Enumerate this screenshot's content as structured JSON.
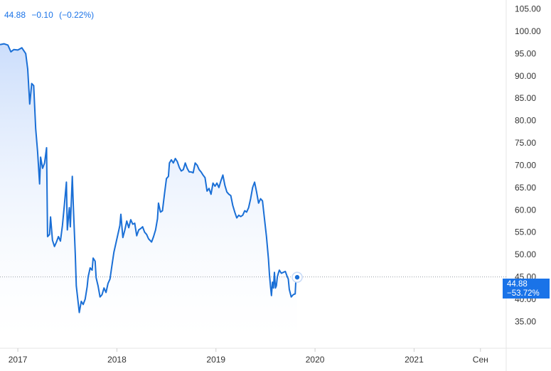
{
  "header": {
    "price": "44.88",
    "change": "−0.10",
    "change_pct": "(−0.22%)"
  },
  "badge": {
    "price": "44.88",
    "change_pct": "−53.72%"
  },
  "colors": {
    "line": "#1a6fd6",
    "accent": "#1a73e8",
    "fill_top": "#c9dcfb",
    "fill_bottom": "#ffffff",
    "axis_text": "#333333",
    "grid": "#e6e6e6"
  },
  "chart_data": {
    "type": "area",
    "title": "",
    "xlabel": "",
    "ylabel": "",
    "ylim": [
      29,
      107
    ],
    "y_ticks": [
      "105.00",
      "100.00",
      "95.00",
      "90.00",
      "85.00",
      "80.00",
      "75.00",
      "70.00",
      "65.00",
      "60.00",
      "55.00",
      "50.00",
      "45.00",
      "40.00",
      "35.00"
    ],
    "x_ticks": [
      {
        "label": "2017",
        "x": 2017.0
      },
      {
        "label": "2018",
        "x": 2018.0
      },
      {
        "label": "2019",
        "x": 2019.0
      },
      {
        "label": "2020",
        "x": 2020.0
      },
      {
        "label": "2021",
        "x": 2021.0
      },
      {
        "label": "Сен",
        "x": 2021.67
      }
    ],
    "xlim": [
      2016.82,
      2021.93
    ],
    "reference_line": 44.98,
    "series": [
      {
        "values": [
          [
            2016.82,
            97.0
          ],
          [
            2016.86,
            97.2
          ],
          [
            2016.9,
            96.9
          ],
          [
            2016.93,
            95.4
          ],
          [
            2016.96,
            95.9
          ],
          [
            2017.0,
            95.8
          ],
          [
            2017.04,
            96.3
          ],
          [
            2017.08,
            95.0
          ],
          [
            2017.1,
            91.5
          ],
          [
            2017.12,
            83.7
          ],
          [
            2017.14,
            88.3
          ],
          [
            2017.16,
            87.8
          ],
          [
            2017.18,
            78.2
          ],
          [
            2017.2,
            73.0
          ],
          [
            2017.22,
            65.8
          ],
          [
            2017.23,
            71.8
          ],
          [
            2017.25,
            69.3
          ],
          [
            2017.27,
            70.5
          ],
          [
            2017.29,
            73.9
          ],
          [
            2017.3,
            54.0
          ],
          [
            2017.32,
            54.5
          ],
          [
            2017.33,
            58.4
          ],
          [
            2017.35,
            53.2
          ],
          [
            2017.37,
            51.8
          ],
          [
            2017.39,
            52.8
          ],
          [
            2017.41,
            54.0
          ],
          [
            2017.43,
            53.0
          ],
          [
            2017.45,
            56.5
          ],
          [
            2017.47,
            61.2
          ],
          [
            2017.49,
            66.2
          ],
          [
            2017.5,
            55.5
          ],
          [
            2017.52,
            60.5
          ],
          [
            2017.53,
            56.2
          ],
          [
            2017.55,
            67.5
          ],
          [
            2017.56,
            61.0
          ],
          [
            2017.58,
            50.0
          ],
          [
            2017.59,
            43.0
          ],
          [
            2017.61,
            39.0
          ],
          [
            2017.62,
            37.0
          ],
          [
            2017.64,
            39.5
          ],
          [
            2017.66,
            38.8
          ],
          [
            2017.68,
            40.0
          ],
          [
            2017.7,
            42.8
          ],
          [
            2017.71,
            45.0
          ],
          [
            2017.73,
            47.0
          ],
          [
            2017.75,
            46.5
          ],
          [
            2017.76,
            49.2
          ],
          [
            2017.78,
            48.5
          ],
          [
            2017.79,
            44.8
          ],
          [
            2017.81,
            43.0
          ],
          [
            2017.83,
            40.5
          ],
          [
            2017.85,
            41.0
          ],
          [
            2017.87,
            42.5
          ],
          [
            2017.89,
            41.5
          ],
          [
            2017.91,
            43.5
          ],
          [
            2017.93,
            44.5
          ],
          [
            2017.95,
            47.5
          ],
          [
            2017.97,
            50.5
          ],
          [
            2017.99,
            52.5
          ],
          [
            2018.01,
            54.5
          ],
          [
            2018.03,
            56.5
          ],
          [
            2018.04,
            59.0
          ],
          [
            2018.06,
            53.8
          ],
          [
            2018.08,
            55.5
          ],
          [
            2018.1,
            57.5
          ],
          [
            2018.12,
            56.0
          ],
          [
            2018.14,
            57.8
          ],
          [
            2018.16,
            56.8
          ],
          [
            2018.18,
            57.0
          ],
          [
            2018.2,
            54.2
          ],
          [
            2018.22,
            55.5
          ],
          [
            2018.24,
            55.8
          ],
          [
            2018.26,
            56.2
          ],
          [
            2018.28,
            55.0
          ],
          [
            2018.3,
            54.5
          ],
          [
            2018.32,
            53.5
          ],
          [
            2018.35,
            52.8
          ],
          [
            2018.37,
            54.0
          ],
          [
            2018.39,
            55.5
          ],
          [
            2018.41,
            58.0
          ],
          [
            2018.42,
            61.5
          ],
          [
            2018.44,
            59.5
          ],
          [
            2018.46,
            59.8
          ],
          [
            2018.48,
            63.5
          ],
          [
            2018.5,
            67.0
          ],
          [
            2018.52,
            67.5
          ],
          [
            2018.53,
            70.5
          ],
          [
            2018.55,
            71.2
          ],
          [
            2018.57,
            70.5
          ],
          [
            2018.59,
            71.5
          ],
          [
            2018.61,
            70.8
          ],
          [
            2018.63,
            69.5
          ],
          [
            2018.65,
            68.7
          ],
          [
            2018.67,
            69.0
          ],
          [
            2018.69,
            70.5
          ],
          [
            2018.71,
            69.3
          ],
          [
            2018.73,
            68.5
          ],
          [
            2018.75,
            68.5
          ],
          [
            2018.77,
            68.3
          ],
          [
            2018.79,
            70.5
          ],
          [
            2018.81,
            70.0
          ],
          [
            2018.83,
            69.0
          ],
          [
            2018.85,
            68.5
          ],
          [
            2018.87,
            67.8
          ],
          [
            2018.89,
            67.2
          ],
          [
            2018.91,
            64.2
          ],
          [
            2018.93,
            64.8
          ],
          [
            2018.95,
            63.5
          ],
          [
            2018.97,
            66.0
          ],
          [
            2018.99,
            65.3
          ],
          [
            2019.01,
            66.0
          ],
          [
            2019.03,
            65.0
          ],
          [
            2019.05,
            66.5
          ],
          [
            2019.07,
            67.8
          ],
          [
            2019.09,
            65.5
          ],
          [
            2019.11,
            64.0
          ],
          [
            2019.13,
            63.5
          ],
          [
            2019.15,
            63.2
          ],
          [
            2019.17,
            61.0
          ],
          [
            2019.19,
            59.5
          ],
          [
            2019.21,
            58.2
          ],
          [
            2019.23,
            58.8
          ],
          [
            2019.25,
            58.5
          ],
          [
            2019.27,
            58.8
          ],
          [
            2019.29,
            59.8
          ],
          [
            2019.31,
            59.5
          ],
          [
            2019.33,
            60.5
          ],
          [
            2019.35,
            62.5
          ],
          [
            2019.37,
            65.0
          ],
          [
            2019.39,
            66.2
          ],
          [
            2019.41,
            64.0
          ],
          [
            2019.43,
            61.5
          ],
          [
            2019.45,
            62.5
          ],
          [
            2019.47,
            62.0
          ],
          [
            2019.49,
            58.0
          ],
          [
            2019.51,
            54.0
          ],
          [
            2019.53,
            49.0
          ],
          [
            2019.54,
            45.5
          ],
          [
            2019.55,
            43.0
          ],
          [
            2019.56,
            40.8
          ],
          [
            2019.57,
            43.8
          ],
          [
            2019.58,
            42.5
          ],
          [
            2019.59,
            46.0
          ],
          [
            2019.6,
            42.5
          ],
          [
            2019.61,
            43.0
          ],
          [
            2019.62,
            45.0
          ],
          [
            2019.63,
            45.8
          ],
          [
            2019.64,
            46.5
          ],
          [
            2019.66,
            45.8
          ],
          [
            2019.68,
            46.0
          ],
          [
            2019.7,
            46.2
          ],
          [
            2019.72,
            45.0
          ],
          [
            2019.73,
            44.5
          ],
          [
            2019.74,
            42.2
          ],
          [
            2019.76,
            40.5
          ],
          [
            2019.78,
            41.0
          ],
          [
            2019.8,
            41.2
          ],
          [
            2019.81,
            45.8
          ],
          [
            2019.82,
            44.9
          ]
        ]
      }
    ]
  }
}
